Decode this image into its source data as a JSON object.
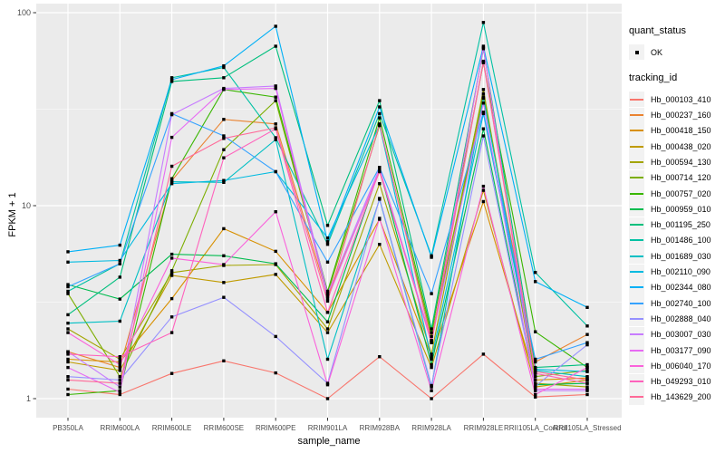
{
  "figure": {
    "background": "#FFFFFF",
    "panel_bg": "#EBEBEB",
    "grid_color": "#FFFFFF",
    "tick_color": "#333333",
    "tick_label_color": "#4D4D4D",
    "point_color": "#000000"
  },
  "legend": {
    "quant_status_title": "quant_status",
    "ok_label": "OK",
    "tracking_id_title": "tracking_id"
  },
  "chart_data": {
    "type": "line",
    "title": "",
    "xlabel": "sample_name",
    "ylabel": "FPKM + 1",
    "yscale": "log10",
    "yticks": [
      1,
      10,
      100
    ],
    "yminor": [
      3.162,
      31.623
    ],
    "ylim": [
      0.85,
      110
    ],
    "grid": true,
    "legend_position": "right",
    "marker": "black-point",
    "categories": [
      "PB350LA",
      "RRIM600LA",
      "RRIM600LE",
      "RRIM600SE",
      "RRIM600PE",
      "RRIM901LA",
      "RRIM928BA",
      "RRIM928LA",
      "RRIM928LE",
      "RRII105LA_Control",
      "RRII105LA_Stressed"
    ],
    "series": [
      {
        "name": "Hb_000103_410",
        "color": "#F8766D",
        "values": [
          1.12,
          1.05,
          1.35,
          1.57,
          1.36,
          1.0,
          1.65,
          1.0,
          1.7,
          1.02,
          1.05
        ]
      },
      {
        "name": "Hb_000237_160",
        "color": "#EA8331",
        "values": [
          1.75,
          1.45,
          13.5,
          28.0,
          26.5,
          3.4,
          15.0,
          2.0,
          36.0,
          1.55,
          2.15
        ]
      },
      {
        "name": "Hb_000418_150",
        "color": "#D89000",
        "values": [
          1.6,
          1.55,
          3.3,
          7.6,
          5.8,
          2.8,
          8.5,
          1.65,
          10.5,
          1.25,
          1.28
        ]
      },
      {
        "name": "Hb_000438_020",
        "color": "#C09B00",
        "values": [
          1.55,
          1.4,
          4.35,
          4.0,
          4.4,
          2.2,
          6.3,
          1.45,
          12.0,
          1.15,
          1.25
        ]
      },
      {
        "name": "Hb_000594_130",
        "color": "#A3A500",
        "values": [
          2.3,
          1.6,
          4.5,
          4.9,
          4.95,
          2.3,
          13.0,
          1.7,
          40.0,
          1.2,
          1.15
        ]
      },
      {
        "name": "Hb_000714_120",
        "color": "#7CAE00",
        "values": [
          3.5,
          1.3,
          4.6,
          19.5,
          35.0,
          3.5,
          26.0,
          2.1,
          38.0,
          1.3,
          1.4
        ]
      },
      {
        "name": "Hb_000757_020",
        "color": "#39B600",
        "values": [
          1.05,
          1.1,
          13.8,
          40.0,
          36.5,
          3.6,
          28.5,
          2.2,
          55.0,
          2.22,
          1.45
        ]
      },
      {
        "name": "Hb_000959_010",
        "color": "#00BB4E",
        "values": [
          3.9,
          3.28,
          5.6,
          5.5,
          5.0,
          2.5,
          15.5,
          1.5,
          25.0,
          1.18,
          1.2
        ]
      },
      {
        "name": "Hb_001195_250",
        "color": "#00BF7D",
        "values": [
          2.72,
          4.26,
          44.0,
          46.0,
          67.0,
          7.9,
          35.0,
          2.3,
          65.0,
          1.45,
          1.5
        ]
      },
      {
        "name": "Hb_001486_100",
        "color": "#00C1A3",
        "values": [
          3.6,
          5.0,
          46.0,
          52.0,
          22.5,
          6.3,
          30.0,
          5.5,
          89.0,
          4.51,
          2.38
        ]
      },
      {
        "name": "Hb_001689_030",
        "color": "#00BFC4",
        "values": [
          2.46,
          2.52,
          13.3,
          13.2,
          22.0,
          1.6,
          10.8,
          1.15,
          36.5,
          1.4,
          1.3
        ]
      },
      {
        "name": "Hb_002110_090",
        "color": "#00BAE0",
        "values": [
          5.1,
          5.2,
          13.0,
          13.5,
          15.0,
          6.8,
          26.2,
          1.6,
          30.0,
          1.42,
          1.38
        ]
      },
      {
        "name": "Hb_002344_080",
        "color": "#00B0F6",
        "values": [
          5.77,
          6.24,
          45.0,
          53.0,
          85.0,
          6.5,
          32.5,
          5.4,
          67.0,
          4.04,
          2.97
        ]
      },
      {
        "name": "Hb_002740_100",
        "color": "#35A2FF",
        "values": [
          3.8,
          5.0,
          30.0,
          23.0,
          15.0,
          5.1,
          15.8,
          3.5,
          30.5,
          1.6,
          1.95
        ]
      },
      {
        "name": "Hb_002888_040",
        "color": "#9590FF",
        "values": [
          1.3,
          1.25,
          2.65,
          3.35,
          2.1,
          1.2,
          10.9,
          1.17,
          23.0,
          1.16,
          1.9
        ]
      },
      {
        "name": "Hb_003007_030",
        "color": "#C77CFF",
        "values": [
          1.75,
          1.15,
          29.6,
          40.5,
          41.7,
          3.5,
          15.6,
          2.0,
          34.0,
          1.1,
          1.1
        ]
      },
      {
        "name": "Hb_003177_090",
        "color": "#E76BF3",
        "values": [
          1.45,
          1.08,
          22.6,
          40.0,
          40.5,
          3.3,
          15.3,
          1.95,
          66.0,
          1.12,
          1.12
        ]
      },
      {
        "name": "Hb_006040_170",
        "color": "#FA62DB",
        "values": [
          2.2,
          1.5,
          5.35,
          4.95,
          9.3,
          1.18,
          8.6,
          1.1,
          12.6,
          1.05,
          1.45
        ]
      },
      {
        "name": "Hb_049293_010",
        "color": "#FF62BC",
        "values": [
          1.7,
          1.65,
          2.2,
          17.7,
          25.0,
          2.8,
          15.2,
          1.95,
          55.5,
          1.35,
          1.2
        ]
      },
      {
        "name": "Hb_143629_200",
        "color": "#FF6A98",
        "values": [
          1.25,
          1.2,
          16.0,
          22.3,
          25.3,
          3.2,
          26.5,
          1.98,
          56.0,
          1.38,
          1.25
        ]
      }
    ]
  }
}
